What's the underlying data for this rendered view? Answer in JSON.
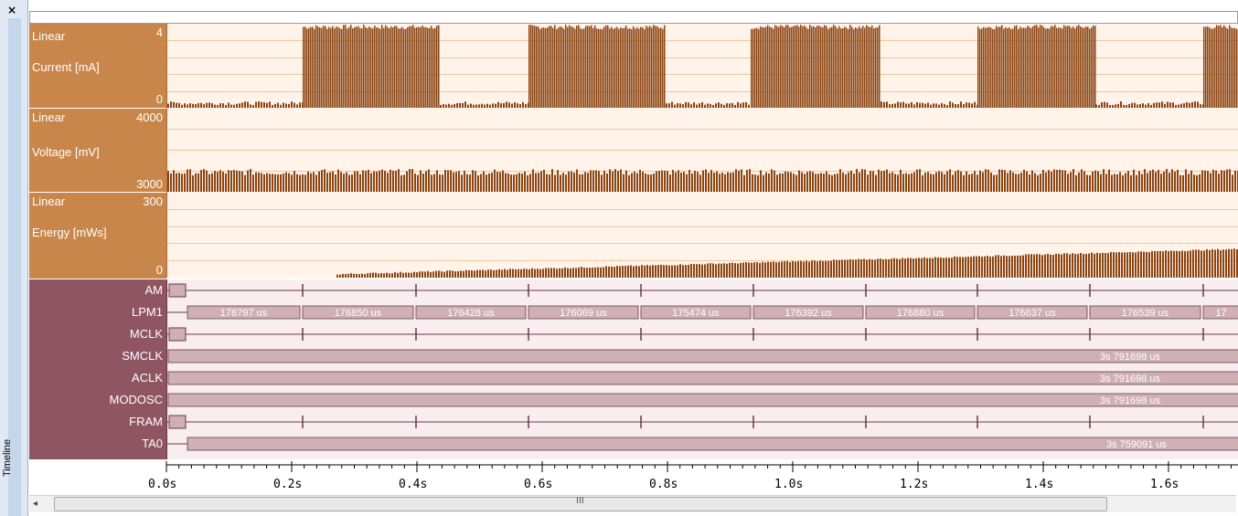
{
  "window": {
    "close_glyph": "×",
    "side_tab": "Timeline"
  },
  "graphs": [
    {
      "id": "current",
      "scale": "Linear",
      "label": "Current [mA]",
      "max": "4",
      "min": "0"
    },
    {
      "id": "voltage",
      "scale": "Linear",
      "label": "Voltage [mV]",
      "max": "4000",
      "min": "3000"
    },
    {
      "id": "energy",
      "scale": "Linear",
      "label": "Energy [mWs]",
      "max": "300",
      "min": "0"
    }
  ],
  "signals": [
    {
      "name": "AM"
    },
    {
      "name": "LPM1"
    },
    {
      "name": "MCLK"
    },
    {
      "name": "SMCLK"
    },
    {
      "name": "ACLK"
    },
    {
      "name": "MODOSC"
    },
    {
      "name": "FRAM"
    },
    {
      "name": "TA0"
    }
  ],
  "lpm1_durations": [
    "178797 us",
    "176850 us",
    "176428 us",
    "176069 us",
    "175474 us",
    "176392 us",
    "176880 us",
    "176637 us",
    "176539 us",
    "17"
  ],
  "smclk_duration": "3s 791698 us",
  "aclk_duration": "3s 791698 us",
  "modosc_duration": "3s 791698 us",
  "ta0_duration": "3s 759091 us",
  "axis": {
    "ticks": [
      "0.0s",
      "0.2s",
      "0.4s",
      "0.6s",
      "0.8s",
      "1.0s",
      "1.2s",
      "1.4s",
      "1.6s"
    ]
  },
  "scroll": {
    "left_arrow": "◂",
    "grip": "III"
  },
  "colors": {
    "graph_fill": "#8b4513",
    "graph_label_bg": "#c8864a",
    "signal_label_bg": "#8f5563",
    "bar_fill": "#cfb0b4"
  }
}
